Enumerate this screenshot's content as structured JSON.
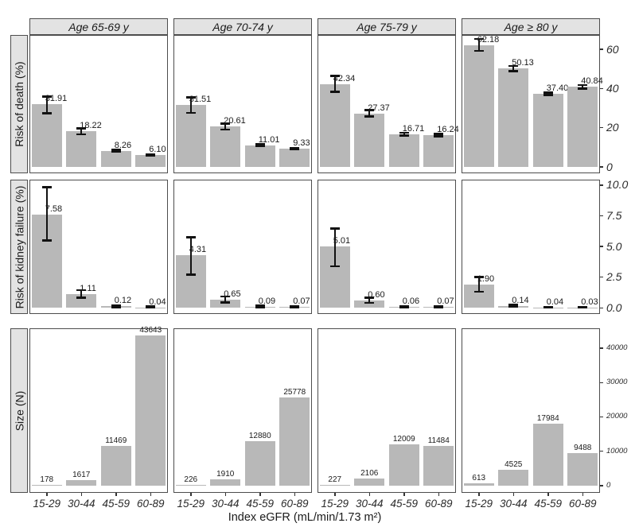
{
  "chart_data": {
    "type": "bar",
    "layout": "facet-grid",
    "title": "",
    "xlabel": "Index eGFR (mL/min/1.73 m²)",
    "categories": [
      "15-29",
      "30-44",
      "45-59",
      "60-89"
    ],
    "facet_columns": [
      "Age 65-69 y",
      "Age 70-74 y",
      "Age 75-79 y",
      "Age ≥ 80 y"
    ],
    "grid": "off",
    "legend": "none",
    "facet_rows": [
      {
        "ylabel": "Risk of death (%)",
        "ylim": [
          -3.2,
          67.3
        ],
        "ytick_values": [
          0,
          20,
          40,
          60
        ],
        "ytick_labels": [
          "0",
          "20",
          "40",
          "60"
        ],
        "error_bars": true,
        "panels": [
          {
            "facet": "Age 65-69 y",
            "values": [
              31.91,
              18.22,
              8.26,
              6.1
            ],
            "labels": [
              "31.91",
              "18.22",
              "8.26",
              "6.10"
            ],
            "err_low": [
              27.3,
              16.7,
              7.8,
              5.7
            ],
            "err_high": [
              35.9,
              19.6,
              8.8,
              6.5
            ]
          },
          {
            "facet": "Age 70-74 y",
            "values": [
              31.51,
              20.61,
              11.01,
              9.33
            ],
            "labels": [
              "31.51",
              "20.61",
              "11.01",
              "9.33"
            ],
            "err_low": [
              27.6,
              19.1,
              10.5,
              8.9
            ],
            "err_high": [
              35.5,
              22.2,
              11.6,
              9.8
            ]
          },
          {
            "facet": "Age 75-79 y",
            "values": [
              42.34,
              27.37,
              16.71,
              16.24
            ],
            "labels": [
              "42.34",
              "27.37",
              "16.71",
              "16.24"
            ],
            "err_low": [
              38.3,
              25.7,
              16.1,
              15.6
            ],
            "err_high": [
              46.4,
              29.0,
              17.4,
              16.9
            ]
          },
          {
            "facet": "Age ≥ 80 y",
            "values": [
              62.18,
              50.13,
              37.4,
              40.84
            ],
            "labels": [
              "62.18",
              "50.13",
              "37.40",
              "40.84"
            ],
            "err_low": [
              59.2,
              48.8,
              36.8,
              40.0
            ],
            "err_high": [
              65.3,
              51.5,
              38.0,
              41.8
            ]
          }
        ]
      },
      {
        "ylabel": "Risk of kidney failure (%)",
        "ylim": [
          -0.5,
          10.45
        ],
        "ytick_values": [
          0,
          2.5,
          5,
          7.5,
          10
        ],
        "ytick_labels": [
          "0.0",
          "2.5",
          "5.0",
          "7.5",
          "10.0"
        ],
        "error_bars": true,
        "panels": [
          {
            "facet": "Age 65-69 y",
            "values": [
              7.58,
              1.11,
              0.12,
              0.04
            ],
            "labels": [
              "7.58",
              "1.11",
              "0.12",
              "0.04"
            ],
            "err_low": [
              5.5,
              0.82,
              0.05,
              0.01
            ],
            "err_high": [
              9.85,
              1.45,
              0.22,
              0.1
            ]
          },
          {
            "facet": "Age 70-74 y",
            "values": [
              4.31,
              0.65,
              0.09,
              0.07
            ],
            "labels": [
              "4.31",
              "0.65",
              "0.09",
              "0.07"
            ],
            "err_low": [
              2.7,
              0.45,
              0.04,
              0.03
            ],
            "err_high": [
              5.75,
              0.92,
              0.17,
              0.14
            ]
          },
          {
            "facet": "Age 75-79 y",
            "values": [
              5.01,
              0.6,
              0.06,
              0.07
            ],
            "labels": [
              "5.01",
              "0.60",
              "0.06",
              "0.07"
            ],
            "err_low": [
              3.4,
              0.42,
              0.02,
              0.03
            ],
            "err_high": [
              6.45,
              0.84,
              0.12,
              0.14
            ]
          },
          {
            "facet": "Age ≥ 80 y",
            "values": [
              1.9,
              0.14,
              0.04,
              0.03
            ],
            "labels": [
              "1.90",
              "0.14",
              "0.04",
              "0.03"
            ],
            "err_low": [
              1.3,
              0.08,
              0.01,
              0.01
            ],
            "err_high": [
              2.5,
              0.23,
              0.09,
              0.08
            ]
          }
        ]
      },
      {
        "ylabel": "Size (N)",
        "ylim": [
          -2100,
          45800
        ],
        "ytick_values": [
          0,
          10000,
          20000,
          30000,
          40000
        ],
        "ytick_labels": [
          "0",
          "10000",
          "20000",
          "30000",
          "40000"
        ],
        "error_bars": false,
        "panels": [
          {
            "facet": "Age 65-69 y",
            "values": [
              178,
              1617,
              11469,
              43643
            ],
            "labels": [
              "178",
              "1617",
              "11469",
              "43643"
            ]
          },
          {
            "facet": "Age 70-74 y",
            "values": [
              226,
              1910,
              12880,
              25778
            ],
            "labels": [
              "226",
              "1910",
              "12880",
              "25778"
            ]
          },
          {
            "facet": "Age 75-79 y",
            "values": [
              227,
              2106,
              12009,
              11484
            ],
            "labels": [
              "227",
              "2106",
              "12009",
              "11484"
            ]
          },
          {
            "facet": "Age ≥ 80 y",
            "values": [
              613,
              4525,
              17984,
              9488
            ],
            "labels": [
              "613",
              "4525",
              "17984",
              "9488"
            ]
          }
        ]
      }
    ]
  },
  "colors": {
    "bar_fill": "#b8b8b8",
    "strip_background": "#e3e3e3",
    "panel_border": "#4d4d4d",
    "error_bar": "#111111",
    "text": "#1a1a1a"
  }
}
